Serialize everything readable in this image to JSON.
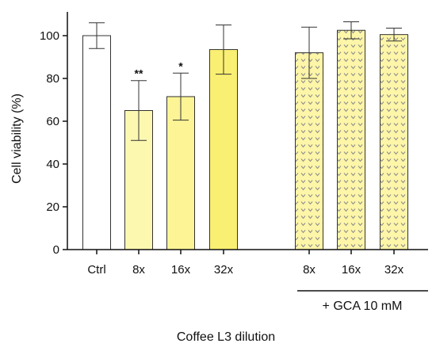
{
  "chart_data": {
    "type": "bar",
    "ylabel": "Cell viability (%)",
    "xlabel": "Coffee L3 dilution",
    "group_label": "+ GCA 10 mM",
    "ylim": [
      0,
      100
    ],
    "yticks": [
      0,
      20,
      40,
      60,
      80,
      100
    ],
    "grid": false,
    "legend": "none",
    "categories": [
      "Ctrl",
      "8x",
      "16x",
      "32x",
      "8x",
      "16x",
      "32x"
    ],
    "values": [
      100,
      65,
      71.5,
      93.5,
      92,
      102.5,
      100.5
    ],
    "error": [
      6,
      14,
      11,
      11.5,
      12,
      4,
      3
    ],
    "significance": [
      "",
      "**",
      "*",
      "",
      "",
      "",
      ""
    ],
    "groups": [
      {
        "name": "Coffee L3 dilution",
        "category_indices": [
          0,
          1,
          2,
          3
        ]
      },
      {
        "name": "+ GCA 10 mM",
        "category_indices": [
          4,
          5,
          6
        ]
      }
    ],
    "colors": {
      "ctrl": "#ffffff",
      "8x": "#fdf8b0",
      "16x": "#fcf495",
      "32x": "#f9ef72",
      "pattern_bg": "#fdf5a8",
      "pattern_mark": "#8a8a8a",
      "stroke": "#333333"
    },
    "bar_fills": [
      "ctrl",
      "8x",
      "16x",
      "32x",
      "pattern",
      "pattern",
      "pattern"
    ]
  }
}
